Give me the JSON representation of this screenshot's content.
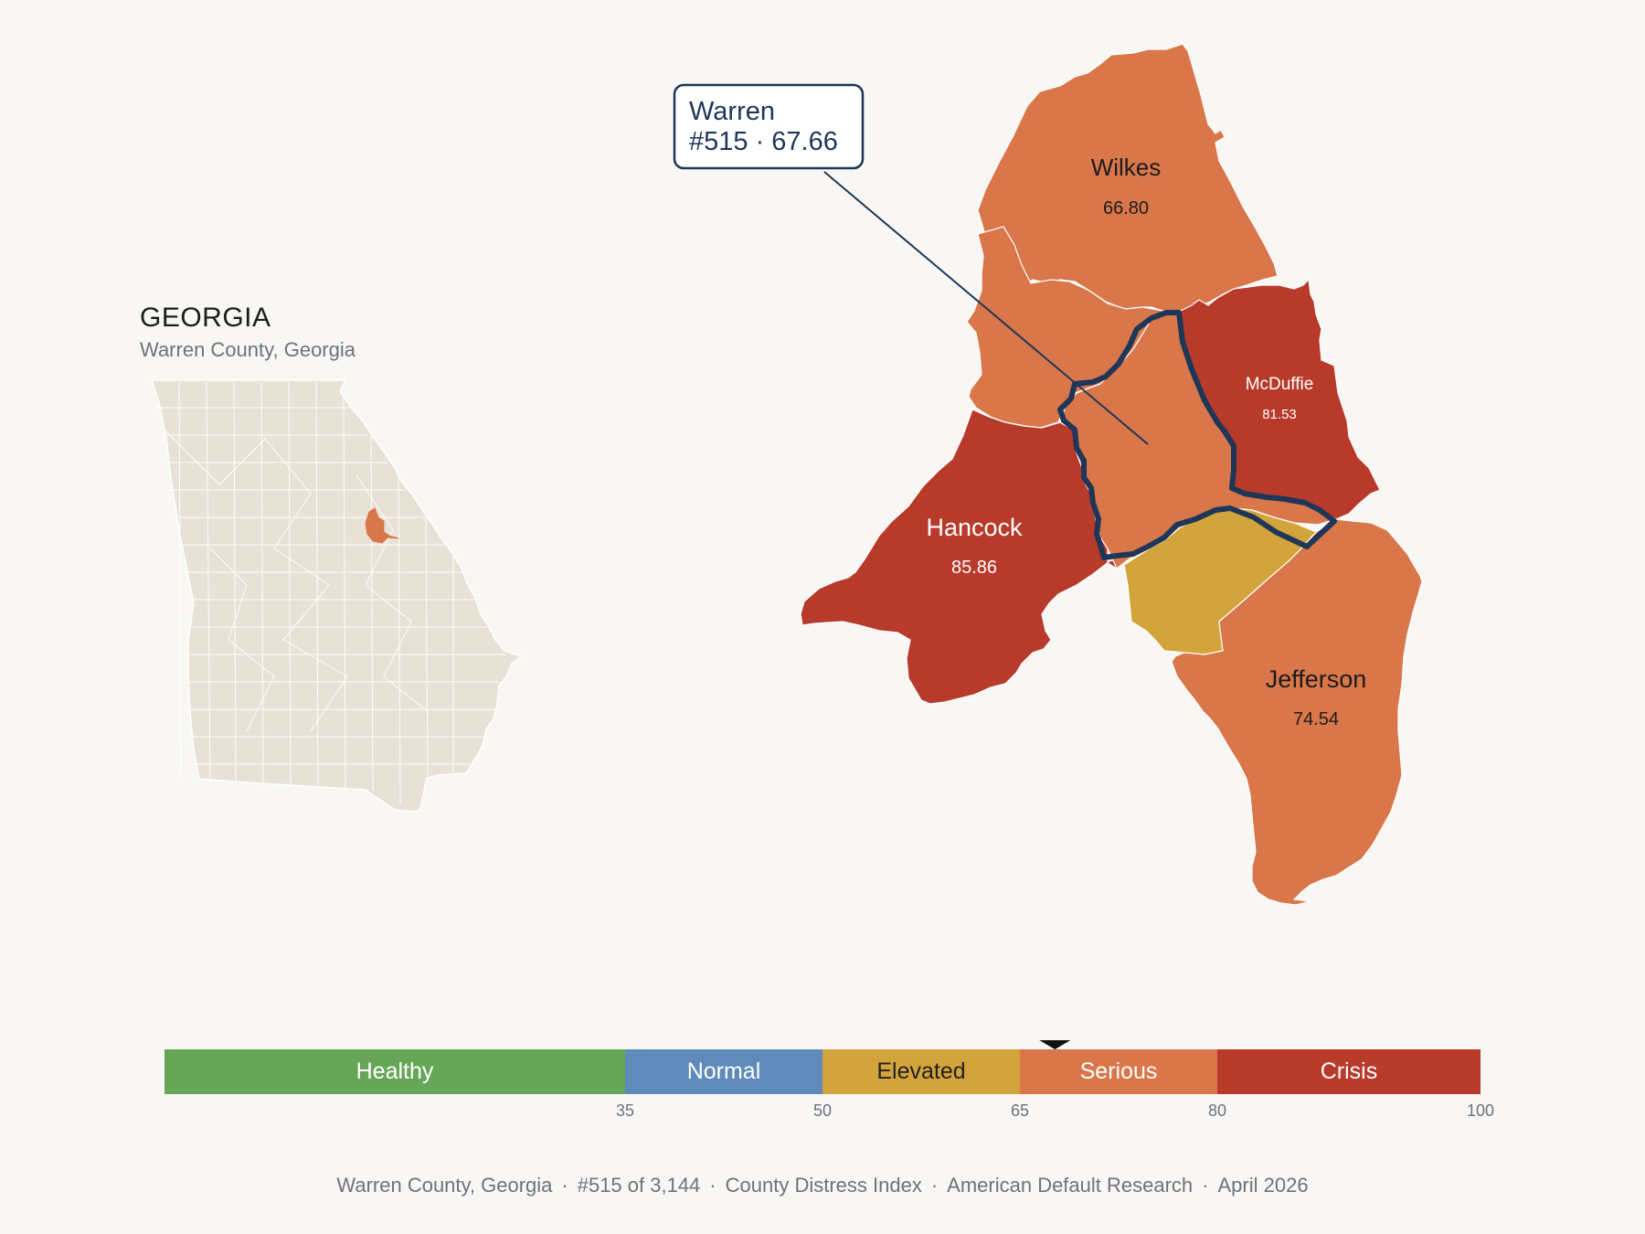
{
  "state": {
    "name": "GEORGIA",
    "subtitle": "Warren County, Georgia"
  },
  "callout": {
    "line1": "Warren",
    "line2": "#515 · 67.66"
  },
  "counties": [
    {
      "name": "Wilkes",
      "score": "66.80",
      "category": "Serious"
    },
    {
      "name": "McDuffie",
      "score": "81.53",
      "category": "Crisis"
    },
    {
      "name": "Hancock",
      "score": "85.86",
      "category": "Crisis"
    },
    {
      "name": "Jefferson",
      "score": "74.54",
      "category": "Serious"
    },
    {
      "name": "Warren",
      "score": "67.66",
      "category": "Serious",
      "highlighted": true
    }
  ],
  "scale": {
    "marker_value": 67.66,
    "min": 0,
    "max": 100,
    "segments": [
      {
        "label": "Healthy",
        "from": 0,
        "to": 35,
        "color": "#66a656",
        "text_color": "#ffffff"
      },
      {
        "label": "Normal",
        "from": 35,
        "to": 50,
        "color": "#5f8ab9",
        "text_color": "#ffffff"
      },
      {
        "label": "Elevated",
        "from": 50,
        "to": 65,
        "color": "#d3a43b",
        "text_color": "#222222"
      },
      {
        "label": "Serious",
        "from": 65,
        "to": 80,
        "color": "#d9764a",
        "text_color": "#ffffff"
      },
      {
        "label": "Crisis",
        "from": 80,
        "to": 100,
        "color": "#b83a2b",
        "text_color": "#ffffff"
      }
    ],
    "ticks": [
      "35",
      "50",
      "65",
      "80",
      "100"
    ]
  },
  "colors": {
    "serious": "#d9764a",
    "crisis": "#b83a2b",
    "elevated": "#d3a43b",
    "state_fill": "#e8e2d6",
    "highlight_outline": "#1e3658",
    "background": "#f9f7f4"
  },
  "footer": [
    "Warren County, Georgia",
    "#515 of 3,144",
    "County Distress Index",
    "American Default Research",
    "April 2026"
  ]
}
